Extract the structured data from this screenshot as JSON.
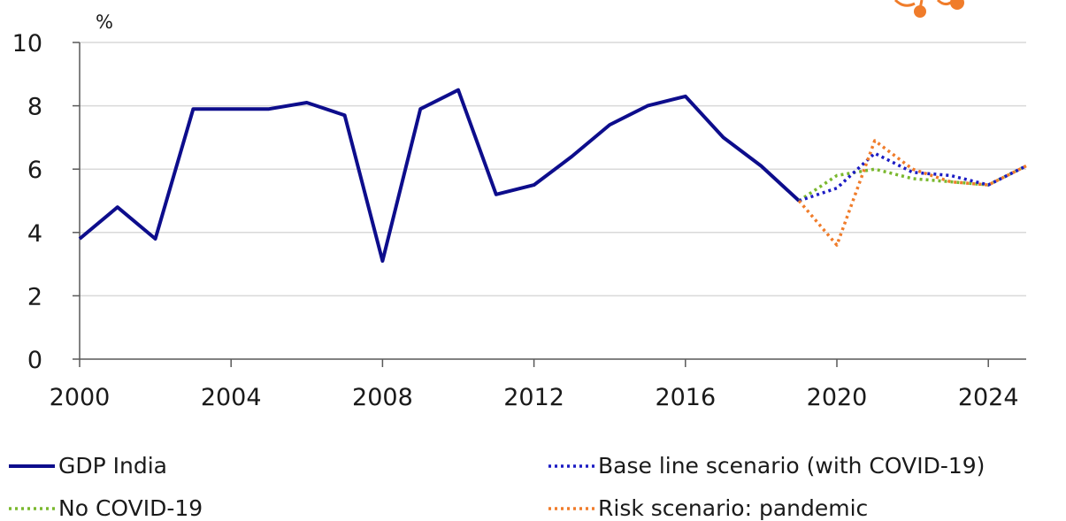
{
  "chart_data": {
    "type": "line",
    "y_unit": "%",
    "x_ticks": [
      "2000",
      "2004",
      "2008",
      "2012",
      "2016",
      "2020",
      "2024"
    ],
    "y_ticks": [
      "0",
      "2",
      "4",
      "6",
      "8",
      "10"
    ],
    "xlim": [
      2000,
      2025
    ],
    "ylim": [
      0,
      10
    ],
    "grid": "horizontal",
    "legend_position": "bottom",
    "series": [
      {
        "name": "GDP India",
        "style": "solid",
        "color": "#0d0d8c",
        "x": [
          2000,
          2001,
          2002,
          2003,
          2004,
          2005,
          2006,
          2007,
          2008,
          2009,
          2010,
          2011,
          2012,
          2013,
          2014,
          2015,
          2016,
          2017,
          2018,
          2019
        ],
        "values": [
          3.8,
          4.8,
          3.8,
          7.9,
          7.9,
          7.9,
          8.1,
          7.7,
          3.1,
          7.9,
          8.5,
          5.2,
          5.5,
          6.4,
          7.4,
          8.0,
          8.3,
          7.0,
          6.1,
          5.0
        ]
      },
      {
        "name": "Base line scenario (with COVID-19)",
        "style": "dotted",
        "color": "#1c1cc4",
        "x": [
          2019,
          2020,
          2021,
          2022,
          2023,
          2024,
          2025
        ],
        "values": [
          5.0,
          5.4,
          6.5,
          5.9,
          5.8,
          5.5,
          6.1
        ]
      },
      {
        "name": "No COVID-19",
        "style": "dotted",
        "color": "#7ab82e",
        "x": [
          2019,
          2020,
          2021,
          2022,
          2023,
          2024,
          2025
        ],
        "values": [
          5.0,
          5.8,
          6.0,
          5.7,
          5.6,
          5.5,
          6.1
        ]
      },
      {
        "name": "Risk scenario: pandemic",
        "style": "dotted",
        "color": "#f07c2a",
        "x": [
          2019,
          2020,
          2021,
          2022,
          2023,
          2024,
          2025
        ],
        "values": [
          5.0,
          3.6,
          6.9,
          6.0,
          5.6,
          5.5,
          6.1
        ]
      }
    ]
  }
}
